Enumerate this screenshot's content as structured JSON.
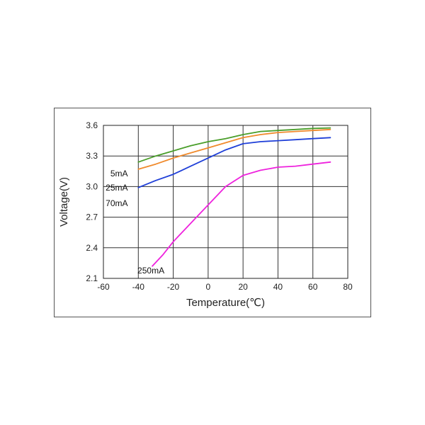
{
  "chart_data": {
    "type": "line",
    "title": "",
    "xlabel": "Temperature(℃)",
    "ylabel": "Voltage(V)",
    "xlim": [
      -60,
      80
    ],
    "ylim": [
      2.1,
      3.6
    ],
    "x_ticks": [
      -60,
      -40,
      -20,
      0,
      20,
      40,
      60,
      80
    ],
    "x_tick_labels": [
      "-60",
      "-40",
      "-20",
      "0",
      "20",
      "40",
      "60",
      "80"
    ],
    "y_ticks": [
      2.1,
      2.4,
      2.7,
      3.0,
      3.3,
      3.6
    ],
    "y_tick_labels": [
      "2.1",
      "2.4",
      "2.7",
      "3.0",
      "3.3",
      "3.6"
    ],
    "grid": true,
    "legend": "inline labels",
    "series": [
      {
        "name": "5mA",
        "color": "#4a9e2a",
        "x": [
          -40,
          -30,
          -20,
          -10,
          0,
          10,
          20,
          30,
          40,
          50,
          60,
          70
        ],
        "y": [
          3.24,
          3.3,
          3.35,
          3.4,
          3.44,
          3.47,
          3.51,
          3.54,
          3.55,
          3.56,
          3.57,
          3.575
        ]
      },
      {
        "name": "25mA",
        "color": "#f08a2c",
        "x": [
          -40,
          -30,
          -20,
          -10,
          0,
          10,
          20,
          30,
          40,
          50,
          60,
          70
        ],
        "y": [
          3.17,
          3.22,
          3.28,
          3.33,
          3.38,
          3.43,
          3.48,
          3.51,
          3.53,
          3.54,
          3.55,
          3.56
        ]
      },
      {
        "name": "70mA",
        "color": "#1f3fd8",
        "x": [
          -40,
          -30,
          -20,
          -10,
          0,
          10,
          20,
          30,
          40,
          50,
          60,
          70
        ],
        "y": [
          2.99,
          3.06,
          3.12,
          3.2,
          3.28,
          3.36,
          3.42,
          3.44,
          3.45,
          3.46,
          3.47,
          3.48
        ]
      },
      {
        "name": "250mA",
        "color": "#ee22dd",
        "x": [
          -32,
          -26,
          -20,
          -10,
          0,
          10,
          20,
          30,
          40,
          50,
          60,
          70
        ],
        "y": [
          2.22,
          2.33,
          2.46,
          2.64,
          2.82,
          3.0,
          3.11,
          3.16,
          3.19,
          3.2,
          3.22,
          3.24
        ]
      }
    ]
  }
}
